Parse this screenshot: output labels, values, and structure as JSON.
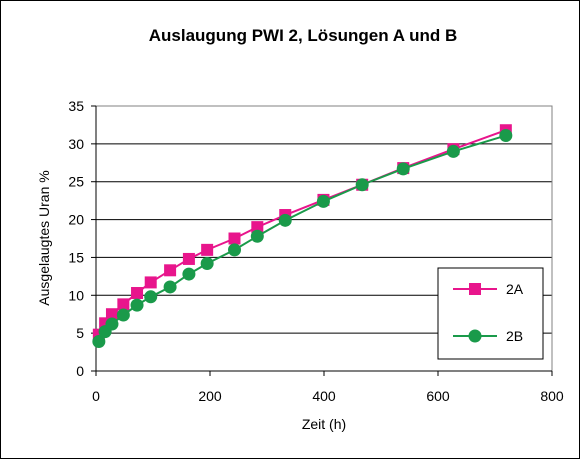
{
  "chart_data": {
    "type": "line",
    "title": "Auslaugung PWI 2, Lösungen A und B",
    "xlabel": "Zeit (h)",
    "ylabel": "Ausgelaugtes Uran %",
    "xlim": [
      0,
      800
    ],
    "ylim": [
      0,
      35
    ],
    "xticks": [
      0,
      200,
      400,
      600,
      800
    ],
    "yticks": [
      0,
      5,
      10,
      15,
      20,
      25,
      30,
      35
    ],
    "grid": "horizontal",
    "legend_position": "right",
    "series": [
      {
        "name": "2A",
        "color": "#e8158c",
        "marker": "square",
        "x": [
          5,
          16,
          28,
          48,
          72,
          96,
          130,
          163,
          195,
          243,
          283,
          332,
          399,
          467,
          539,
          627,
          719
        ],
        "y": [
          4.8,
          6.3,
          7.5,
          8.8,
          10.3,
          11.7,
          13.3,
          14.8,
          16.0,
          17.5,
          19.0,
          20.6,
          22.6,
          24.6,
          26.8,
          29.3,
          31.8
        ]
      },
      {
        "name": "2B",
        "color": "#1a9a4a",
        "marker": "circle",
        "x": [
          5,
          16,
          28,
          48,
          72,
          96,
          130,
          163,
          195,
          243,
          283,
          332,
          399,
          467,
          539,
          627,
          719
        ],
        "y": [
          3.9,
          5.2,
          6.2,
          7.4,
          8.7,
          9.8,
          11.1,
          12.8,
          14.2,
          16.0,
          17.8,
          19.9,
          22.4,
          24.6,
          26.7,
          29.0,
          31.1
        ]
      }
    ]
  }
}
